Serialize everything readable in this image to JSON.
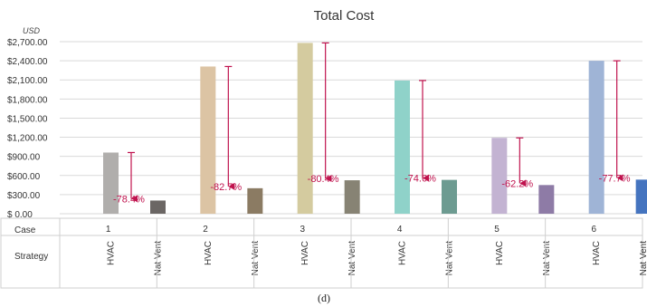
{
  "chart_data": {
    "type": "bar",
    "title": "Total Cost",
    "unit_label": "USD",
    "ylim": [
      0,
      2700
    ],
    "yticks": [
      0,
      300,
      600,
      900,
      1200,
      1500,
      1800,
      2100,
      2400,
      2700
    ],
    "ytick_labels": [
      "$ 0.00",
      "$300.00",
      "$600.00",
      "$900.00",
      "$1,200.00",
      "$1,500.00",
      "$1,800.00",
      "$2,100.00",
      "$2,400.00",
      "$2,700.00"
    ],
    "grid": true,
    "table_row_labels": {
      "case": "Case",
      "strategy": "Strategy"
    },
    "strategies": [
      "HVAC",
      "Nat Vent"
    ],
    "cases": [
      {
        "case": "1",
        "hvac": 960,
        "natvent": 207,
        "reduction": "-78.4%",
        "hvac_color": "#b0aeac",
        "natvent_color": "#6b6664"
      },
      {
        "case": "2",
        "hvac": 2310,
        "natvent": 400,
        "reduction": "-82.7%",
        "hvac_color": "#dcc4a4",
        "natvent_color": "#8b7b63"
      },
      {
        "case": "3",
        "hvac": 2680,
        "natvent": 525,
        "reduction": "-80.4%",
        "hvac_color": "#d4cb9f",
        "natvent_color": "#878374"
      },
      {
        "case": "4",
        "hvac": 2090,
        "natvent": 531,
        "reduction": "-74.6%",
        "hvac_color": "#8fd2c9",
        "natvent_color": "#6d9b91"
      },
      {
        "case": "5",
        "hvac": 1190,
        "natvent": 450,
        "reduction": "-62.2%",
        "hvac_color": "#c3b3d2",
        "natvent_color": "#8e7ba6"
      },
      {
        "case": "6",
        "hvac": 2400,
        "natvent": 535,
        "reduction": "-77.7%",
        "hvac_color": "#9fb4d6",
        "natvent_color": "#4574bf"
      }
    ]
  },
  "caption": "(d)"
}
